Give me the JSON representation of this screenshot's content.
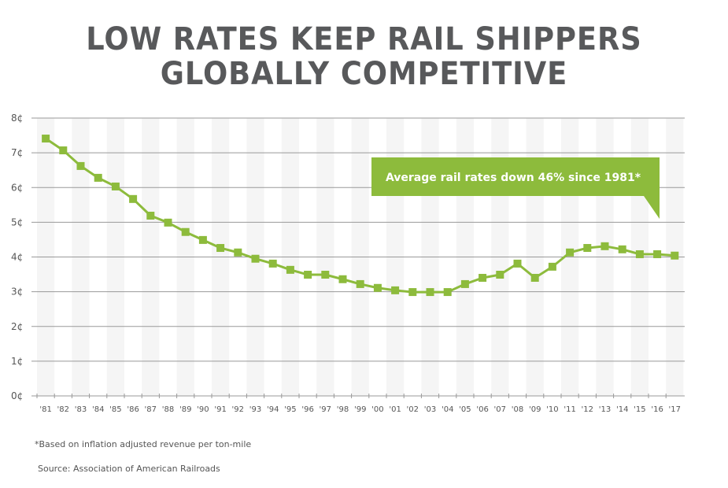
{
  "title_line1": "LOW RATES KEEP RAIL SHIPPERS",
  "title_line2": "GLOBALLY COMPETITIVE",
  "footnote": "*Based on inflation adjusted revenue per ton-mile",
  "source": "Source:  Association of American Railroads",
  "colors": {
    "series": "#8dbb3c",
    "title": "#58595b",
    "band": "#f5f5f5",
    "grid": "#999999"
  },
  "chart_data": {
    "type": "line",
    "title": "LOW RATES KEEP RAIL SHIPPERS GLOBALLY COMPETITIVE",
    "categories": [
      "'81",
      "'82",
      "'83",
      "'84",
      "'85",
      "'86",
      "'87",
      "'88",
      "'89",
      "'90",
      "'91",
      "'92",
      "'93",
      "'94",
      "'95",
      "'96",
      "'97",
      "'98",
      "'99",
      "'00",
      "'01",
      "'02",
      "'03",
      "'04",
      "'05",
      "'06",
      "'07",
      "'08",
      "'09",
      "'10",
      "'11",
      "'12",
      "'13",
      "'14",
      "'15",
      "'16",
      "'17"
    ],
    "values": [
      7.41,
      7.07,
      6.62,
      6.28,
      6.03,
      5.67,
      5.19,
      4.99,
      4.72,
      4.49,
      4.26,
      4.13,
      3.95,
      3.81,
      3.63,
      3.49,
      3.49,
      3.36,
      3.22,
      3.11,
      3.04,
      2.99,
      2.99,
      2.99,
      3.22,
      3.4,
      3.49,
      3.81,
      3.4,
      3.72,
      4.13,
      4.26,
      4.31,
      4.22,
      4.08,
      4.08,
      4.04
    ],
    "y_ticks": [
      "0¢",
      "1¢",
      "2¢",
      "3¢",
      "4¢",
      "5¢",
      "6¢",
      "7¢",
      "8¢"
    ],
    "ylim": [
      0,
      8
    ],
    "grid": true,
    "marker": "square",
    "annotation": "Average rail rates down 46% since 1981*"
  }
}
